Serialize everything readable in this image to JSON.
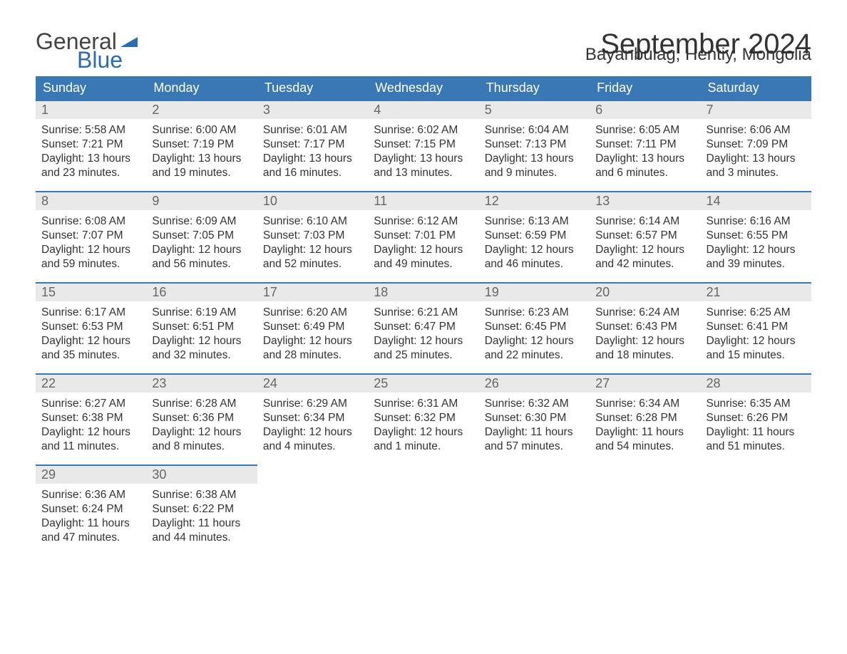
{
  "logo": {
    "text1": "General",
    "text2": "Blue"
  },
  "title": "September 2024",
  "location": "Bayanbulag, Hentiy, Mongolia",
  "colors": {
    "header_bg": "#3a78b5",
    "header_text": "#ffffff",
    "daynum_bg": "#e9e9e9",
    "daynum_text": "#666666",
    "border_top": "#3a78b5",
    "body_text": "#333333",
    "logo_general": "#444444",
    "logo_blue": "#2b6cb0"
  },
  "weekdays": [
    "Sunday",
    "Monday",
    "Tuesday",
    "Wednesday",
    "Thursday",
    "Friday",
    "Saturday"
  ],
  "weeks": [
    [
      {
        "n": "1",
        "sunrise": "5:58 AM",
        "sunset": "7:21 PM",
        "daylight": "13 hours and 23 minutes."
      },
      {
        "n": "2",
        "sunrise": "6:00 AM",
        "sunset": "7:19 PM",
        "daylight": "13 hours and 19 minutes."
      },
      {
        "n": "3",
        "sunrise": "6:01 AM",
        "sunset": "7:17 PM",
        "daylight": "13 hours and 16 minutes."
      },
      {
        "n": "4",
        "sunrise": "6:02 AM",
        "sunset": "7:15 PM",
        "daylight": "13 hours and 13 minutes."
      },
      {
        "n": "5",
        "sunrise": "6:04 AM",
        "sunset": "7:13 PM",
        "daylight": "13 hours and 9 minutes."
      },
      {
        "n": "6",
        "sunrise": "6:05 AM",
        "sunset": "7:11 PM",
        "daylight": "13 hours and 6 minutes."
      },
      {
        "n": "7",
        "sunrise": "6:06 AM",
        "sunset": "7:09 PM",
        "daylight": "13 hours and 3 minutes."
      }
    ],
    [
      {
        "n": "8",
        "sunrise": "6:08 AM",
        "sunset": "7:07 PM",
        "daylight": "12 hours and 59 minutes."
      },
      {
        "n": "9",
        "sunrise": "6:09 AM",
        "sunset": "7:05 PM",
        "daylight": "12 hours and 56 minutes."
      },
      {
        "n": "10",
        "sunrise": "6:10 AM",
        "sunset": "7:03 PM",
        "daylight": "12 hours and 52 minutes."
      },
      {
        "n": "11",
        "sunrise": "6:12 AM",
        "sunset": "7:01 PM",
        "daylight": "12 hours and 49 minutes."
      },
      {
        "n": "12",
        "sunrise": "6:13 AM",
        "sunset": "6:59 PM",
        "daylight": "12 hours and 46 minutes."
      },
      {
        "n": "13",
        "sunrise": "6:14 AM",
        "sunset": "6:57 PM",
        "daylight": "12 hours and 42 minutes."
      },
      {
        "n": "14",
        "sunrise": "6:16 AM",
        "sunset": "6:55 PM",
        "daylight": "12 hours and 39 minutes."
      }
    ],
    [
      {
        "n": "15",
        "sunrise": "6:17 AM",
        "sunset": "6:53 PM",
        "daylight": "12 hours and 35 minutes."
      },
      {
        "n": "16",
        "sunrise": "6:19 AM",
        "sunset": "6:51 PM",
        "daylight": "12 hours and 32 minutes."
      },
      {
        "n": "17",
        "sunrise": "6:20 AM",
        "sunset": "6:49 PM",
        "daylight": "12 hours and 28 minutes."
      },
      {
        "n": "18",
        "sunrise": "6:21 AM",
        "sunset": "6:47 PM",
        "daylight": "12 hours and 25 minutes."
      },
      {
        "n": "19",
        "sunrise": "6:23 AM",
        "sunset": "6:45 PM",
        "daylight": "12 hours and 22 minutes."
      },
      {
        "n": "20",
        "sunrise": "6:24 AM",
        "sunset": "6:43 PM",
        "daylight": "12 hours and 18 minutes."
      },
      {
        "n": "21",
        "sunrise": "6:25 AM",
        "sunset": "6:41 PM",
        "daylight": "12 hours and 15 minutes."
      }
    ],
    [
      {
        "n": "22",
        "sunrise": "6:27 AM",
        "sunset": "6:38 PM",
        "daylight": "12 hours and 11 minutes."
      },
      {
        "n": "23",
        "sunrise": "6:28 AM",
        "sunset": "6:36 PM",
        "daylight": "12 hours and 8 minutes."
      },
      {
        "n": "24",
        "sunrise": "6:29 AM",
        "sunset": "6:34 PM",
        "daylight": "12 hours and 4 minutes."
      },
      {
        "n": "25",
        "sunrise": "6:31 AM",
        "sunset": "6:32 PM",
        "daylight": "12 hours and 1 minute."
      },
      {
        "n": "26",
        "sunrise": "6:32 AM",
        "sunset": "6:30 PM",
        "daylight": "11 hours and 57 minutes."
      },
      {
        "n": "27",
        "sunrise": "6:34 AM",
        "sunset": "6:28 PM",
        "daylight": "11 hours and 54 minutes."
      },
      {
        "n": "28",
        "sunrise": "6:35 AM",
        "sunset": "6:26 PM",
        "daylight": "11 hours and 51 minutes."
      }
    ],
    [
      {
        "n": "29",
        "sunrise": "6:36 AM",
        "sunset": "6:24 PM",
        "daylight": "11 hours and 47 minutes."
      },
      {
        "n": "30",
        "sunrise": "6:38 AM",
        "sunset": "6:22 PM",
        "daylight": "11 hours and 44 minutes."
      },
      null,
      null,
      null,
      null,
      null
    ]
  ],
  "labels": {
    "sunrise": "Sunrise: ",
    "sunset": "Sunset: ",
    "daylight": "Daylight: "
  }
}
